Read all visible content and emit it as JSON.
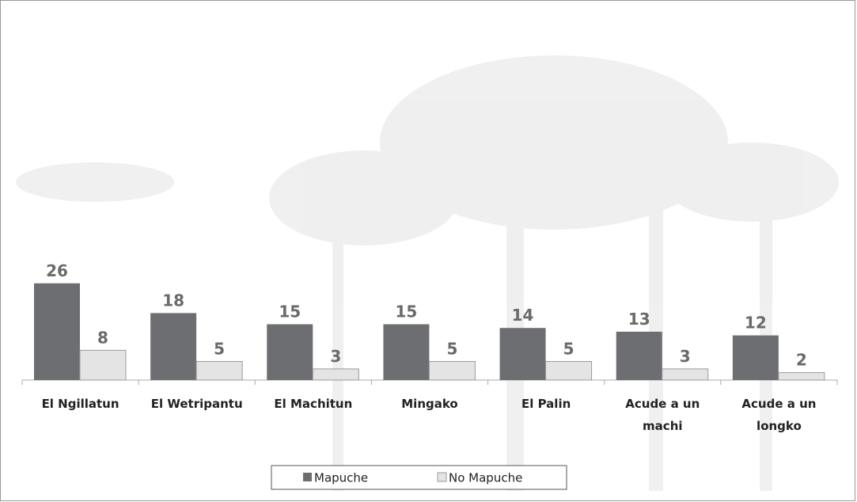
{
  "chart_data": {
    "type": "bar",
    "categories": [
      "El Ngillatun",
      "El Wetripantu",
      "El Machitun",
      "Mingako",
      "El Palin",
      "Acude a un machi",
      "Acude a un longko"
    ],
    "series": [
      {
        "name": "Mapuche",
        "color": "#6d6e71",
        "values": [
          26,
          18,
          15,
          15,
          14,
          13,
          12
        ]
      },
      {
        "name": "No Mapuche",
        "color": "#e4e4e4",
        "values": [
          8,
          5,
          3,
          5,
          5,
          3,
          2
        ]
      }
    ]
  }
}
